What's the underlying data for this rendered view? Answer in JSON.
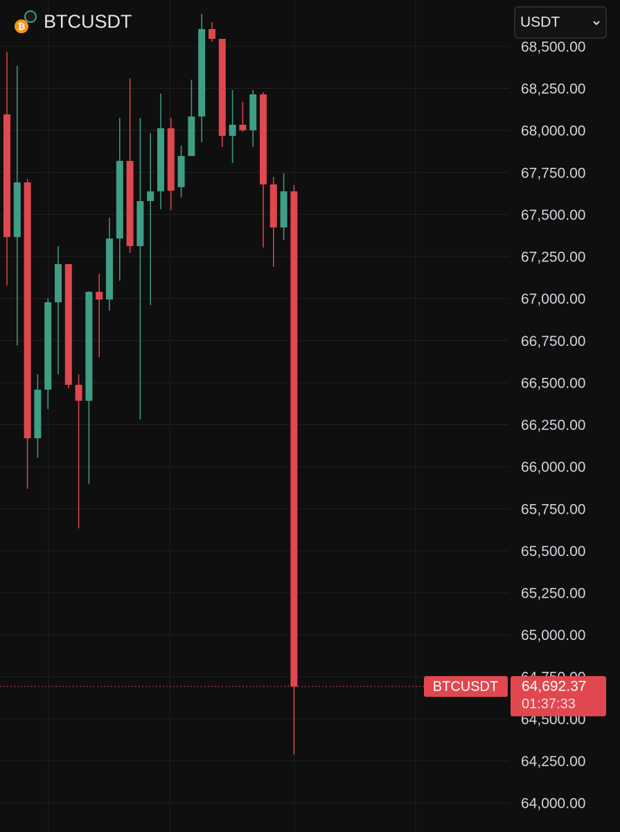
{
  "chart_data": {
    "type": "candlestick",
    "title": "BTCUSDT",
    "currency": "USDT",
    "up_color": "#3f9e84",
    "down_color": "#e0474f",
    "open": [
      68096,
      67366,
      67691,
      66169,
      66458,
      66978,
      67205,
      66487,
      66392,
      67040,
      66994,
      67357,
      67819,
      67312,
      67580,
      67638,
      68013,
      67663,
      67848,
      68083,
      68603,
      68545,
      67968,
      68034,
      68001,
      68215,
      67679,
      67423,
      67638
    ],
    "high": [
      68467,
      68384,
      67712,
      66549,
      67003,
      67312,
      67205,
      66549,
      67044,
      67147,
      67481,
      68075,
      68310,
      68075,
      67984,
      68219,
      68075,
      67910,
      68302,
      68694,
      68644,
      68545,
      68240,
      68170,
      68240,
      68228,
      67724,
      67745,
      67675
    ],
    "low": [
      67077,
      66722,
      65868,
      66054,
      66343,
      66549,
      66466,
      65633,
      65897,
      66652,
      66928,
      67106,
      67271,
      66281,
      66961,
      67531,
      67527,
      67601,
      67848,
      67931,
      68529,
      67902,
      67807,
      67993,
      67902,
      67304,
      67188,
      67349,
      64288
    ],
    "close": [
      67366,
      67691,
      66169,
      66458,
      66978,
      67205,
      66487,
      66392,
      67040,
      66994,
      67357,
      67819,
      67312,
      67580,
      67638,
      68013,
      67642,
      67848,
      68083,
      68603,
      68545,
      67968,
      68034,
      68001,
      68215,
      67679,
      67423,
      67638,
      64692.37
    ],
    "ylim": [
      63827,
      68776
    ],
    "yticks": [
      {
        "value": 64000,
        "label": "64,000.00"
      },
      {
        "value": 64250,
        "label": "64,250.00"
      },
      {
        "value": 64500,
        "label": "64,500.00"
      },
      {
        "value": 64750,
        "label": "64,750.00"
      },
      {
        "value": 65000,
        "label": "65,000.00"
      },
      {
        "value": 65250,
        "label": "65,250.00"
      },
      {
        "value": 65500,
        "label": "65,500.00"
      },
      {
        "value": 65750,
        "label": "65,750.00"
      },
      {
        "value": 66000,
        "label": "66,000.00"
      },
      {
        "value": 66250,
        "label": "66,250.00"
      },
      {
        "value": 66500,
        "label": "66,500.00"
      },
      {
        "value": 66750,
        "label": "66,750.00"
      },
      {
        "value": 67000,
        "label": "67,000.00"
      },
      {
        "value": 67250,
        "label": "67,250.00"
      },
      {
        "value": 67500,
        "label": "67,500.00"
      },
      {
        "value": 67750,
        "label": "67,750.00"
      },
      {
        "value": 68000,
        "label": "68,000.00"
      },
      {
        "value": 68250,
        "label": "68,250.00"
      },
      {
        "value": 68500,
        "label": "68,500.00"
      }
    ],
    "grid": true,
    "last_price": {
      "value": 64692.37,
      "label": "64,692.37"
    },
    "price_tag": "BTCUSDT",
    "countdown": "01:37:33"
  }
}
